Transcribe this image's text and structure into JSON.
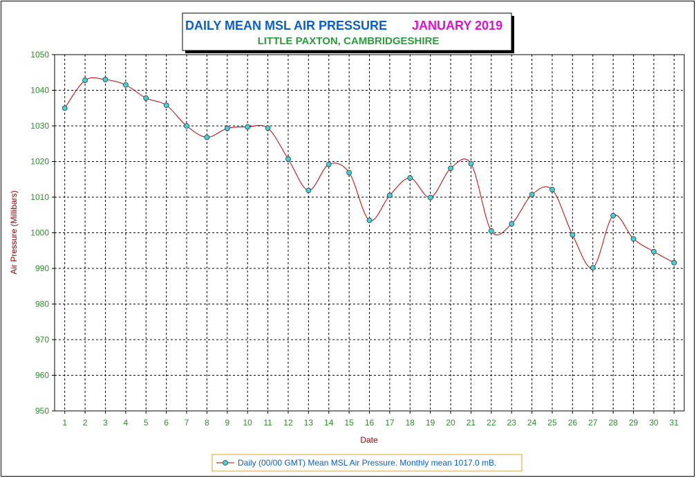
{
  "title": {
    "main": "DAILY MEAN MSL AIR PRESSURE",
    "period": "JANUARY 2019",
    "location": "LITTLE PAXTON, CAMBRIDGESHIRE"
  },
  "legend": {
    "label": "Daily (00/00 GMT) Mean MSL Air Pressure. Monthly mean 1017.0 mB."
  },
  "colors": {
    "title_main": "#0a5fc8",
    "title_period": "#e010d0",
    "title_location": "#2e9a3e",
    "axis_text": "#2e8b2e",
    "axis_label": "#8b0000",
    "series_line": "#c00000",
    "marker_fill": "#3fd3dc",
    "legend_text": "#0a5fc8",
    "legend_border": "#e0a020"
  },
  "chart_data": {
    "type": "line",
    "xlabel": "Date",
    "ylabel": "Air Pressure (Millibars)",
    "x": [
      1,
      2,
      3,
      4,
      5,
      6,
      7,
      8,
      9,
      10,
      11,
      12,
      13,
      14,
      15,
      16,
      17,
      18,
      19,
      20,
      21,
      22,
      23,
      24,
      25,
      26,
      27,
      28,
      29,
      30,
      31
    ],
    "y_ticks": [
      950,
      960,
      970,
      980,
      990,
      1000,
      1010,
      1020,
      1030,
      1040,
      1050
    ],
    "ylim": [
      950,
      1050
    ],
    "xlim": [
      0.5,
      31.5
    ],
    "grid": true,
    "legend_position": "bottom",
    "series": [
      {
        "name": "Daily (00/00 GMT) Mean MSL Air Pressure. Monthly mean 1017.0 mB.",
        "values": [
          1035.0,
          1042.8,
          1043.0,
          1041.5,
          1037.8,
          1035.8,
          1030.0,
          1026.8,
          1029.3,
          1029.7,
          1029.4,
          1020.7,
          1011.9,
          1019.2,
          1016.9,
          1003.5,
          1010.5,
          1015.4,
          1009.9,
          1018.1,
          1019.4,
          1000.5,
          1002.5,
          1010.7,
          1012.1,
          999.4,
          990.2,
          1004.8,
          998.3,
          994.7,
          991.6
        ]
      }
    ]
  }
}
